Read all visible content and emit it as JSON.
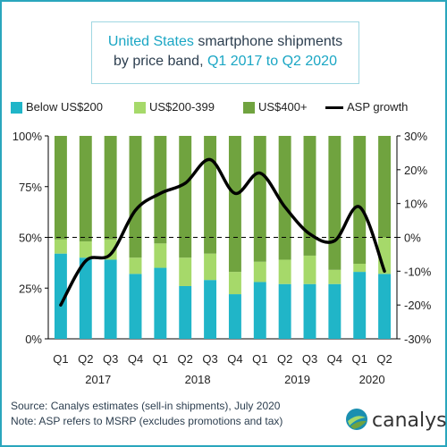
{
  "title": {
    "line1_accent": "United States",
    "line1_rest": " smartphone shipments",
    "line2_rest": "by price band, ",
    "line2_accent": "Q1 2017 to Q2 2020"
  },
  "colors": {
    "accent": "#1aa6c4",
    "below_200": "#20b5c8",
    "mid_200_399": "#a6d96a",
    "above_400": "#70a33f",
    "asp_line": "#000000"
  },
  "chart_data": {
    "type": "bar",
    "stacked": true,
    "categories": [
      "Q1",
      "Q2",
      "Q3",
      "Q4",
      "Q1",
      "Q2",
      "Q3",
      "Q4",
      "Q1",
      "Q2",
      "Q3",
      "Q4",
      "Q1",
      "Q2"
    ],
    "years": [
      {
        "label": "2017",
        "from": 0,
        "to": 3
      },
      {
        "label": "2018",
        "from": 4,
        "to": 7
      },
      {
        "label": "2019",
        "from": 8,
        "to": 11
      },
      {
        "label": "2020",
        "from": 12,
        "to": 13
      }
    ],
    "series": [
      {
        "name": "Below US$200",
        "axis": "left",
        "values": [
          42,
          40,
          39,
          32,
          35,
          26,
          29,
          22,
          28,
          27,
          27,
          27,
          33,
          32
        ]
      },
      {
        "name": "US$200-399",
        "axis": "left",
        "values": [
          7,
          8,
          10,
          8,
          12,
          14,
          13,
          11,
          10,
          12,
          14,
          7,
          4,
          18
        ]
      },
      {
        "name": "US$400+",
        "axis": "left",
        "values": [
          51,
          52,
          51,
          60,
          53,
          60,
          58,
          67,
          62,
          61,
          59,
          66,
          63,
          50
        ]
      },
      {
        "name": "ASP growth",
        "axis": "right",
        "type": "line",
        "values": [
          -20,
          -7,
          -5,
          8,
          13,
          16,
          23,
          13,
          19,
          9,
          1,
          -1,
          9,
          -10
        ]
      }
    ],
    "y_left": {
      "ticks": [
        "0%",
        "25%",
        "50%",
        "75%",
        "100%"
      ],
      "ylim": [
        0,
        100
      ]
    },
    "y_right": {
      "ticks": [
        "-30%",
        "-20%",
        "-10%",
        "0%",
        "10%",
        "20%",
        "30%"
      ],
      "ylim": [
        -30,
        30
      ]
    },
    "reference_line": {
      "axis": "right",
      "value": 0,
      "style": "dashed"
    },
    "legend_position": "top"
  },
  "footer": {
    "source": "Source: Canalys estimates (sell-in shipments), July 2020",
    "note": "Note: ASP refers to MSRP (excludes promotions and tax)"
  },
  "logo": {
    "text": "canalys"
  }
}
